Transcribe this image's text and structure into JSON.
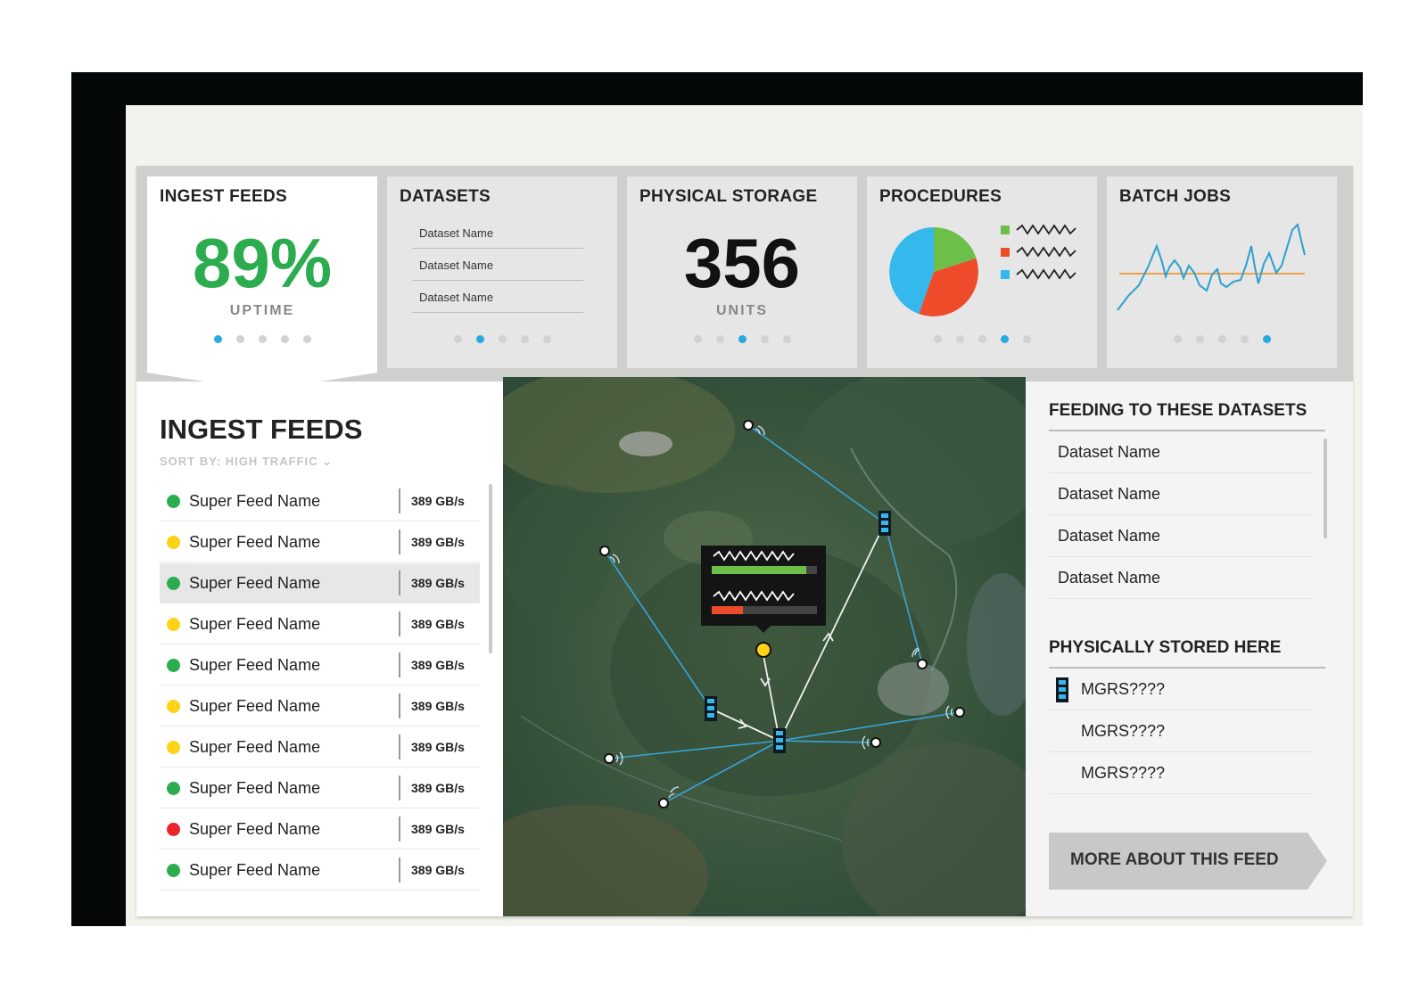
{
  "cards": {
    "ingest": {
      "title": "INGEST FEEDS",
      "value": "89%",
      "sub": "UPTIME",
      "page": 1
    },
    "datasets": {
      "title": "DATASETS",
      "items": [
        "Dataset Name",
        "Dataset Name",
        "Dataset Name"
      ],
      "page": 2
    },
    "storage": {
      "title": "PHYSICAL STORAGE",
      "value": "356",
      "sub": "UNITS",
      "page": 3
    },
    "procedures": {
      "title": "PROCEDURES",
      "page": 4,
      "legend_colors": [
        "#6cc04a",
        "#ee4b2b",
        "#35b8ec"
      ]
    },
    "batch": {
      "title": "BATCH JOBS",
      "page": 5
    }
  },
  "feeds": {
    "title": "INGEST FEEDS",
    "sort_label": "SORT BY: HIGH TRAFFIC",
    "items": [
      {
        "name": "Super Feed Name",
        "rate": "389 GB/s",
        "status": "#2cac4e"
      },
      {
        "name": "Super Feed Name",
        "rate": "389 GB/s",
        "status": "#fcd317"
      },
      {
        "name": "Super Feed Name",
        "rate": "389 GB/s",
        "status": "#2cac4e"
      },
      {
        "name": "Super Feed Name",
        "rate": "389 GB/s",
        "status": "#fcd317"
      },
      {
        "name": "Super Feed Name",
        "rate": "389 GB/s",
        "status": "#2cac4e"
      },
      {
        "name": "Super Feed Name",
        "rate": "389 GB/s",
        "status": "#fcd317"
      },
      {
        "name": "Super Feed Name",
        "rate": "389 GB/s",
        "status": "#fcd317"
      },
      {
        "name": "Super Feed Name",
        "rate": "389 GB/s",
        "status": "#2cac4e"
      },
      {
        "name": "Super Feed Name",
        "rate": "389 GB/s",
        "status": "#e8262b"
      },
      {
        "name": "Super Feed Name",
        "rate": "389 GB/s",
        "status": "#2cac4e"
      }
    ]
  },
  "map": {
    "popup": {
      "green_bar_fill": 0.9,
      "red_bar_fill": 0.3
    },
    "colors": {
      "link": "#3aa4d6",
      "highlight": "#f0f0f0",
      "selected": "#fcd317"
    }
  },
  "right": {
    "feeding_title": "FEEDING TO THESE DATASETS",
    "datasets": [
      "Dataset Name",
      "Dataset Name",
      "Dataset Name",
      "Dataset Name"
    ],
    "stored_title": "PHYSICALLY STORED HERE",
    "stored": [
      "MGRS????",
      "MGRS????",
      "MGRS????"
    ],
    "more_button": "MORE ABOUT THIS FEED"
  }
}
